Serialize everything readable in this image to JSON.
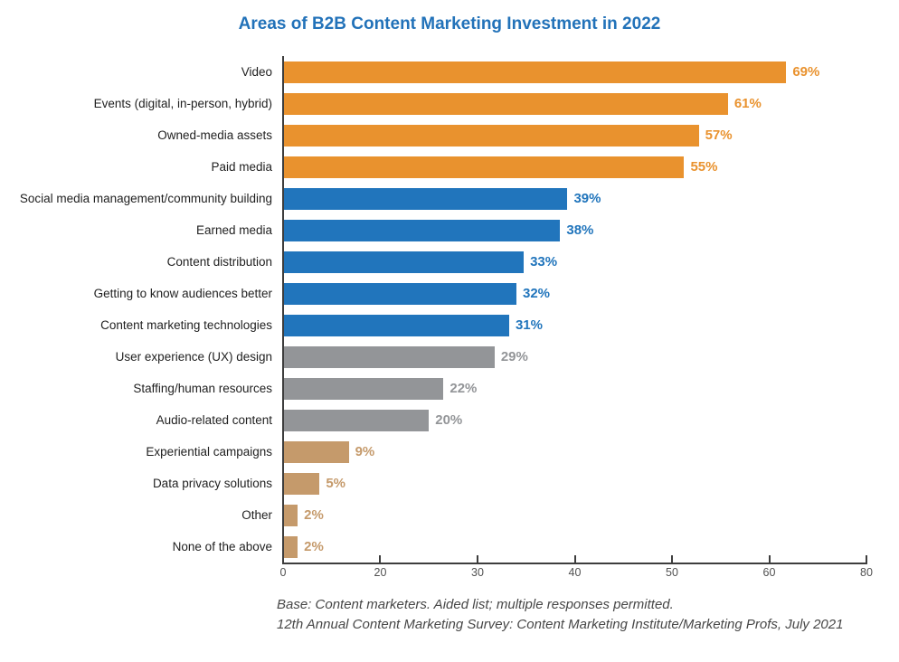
{
  "title": "Areas of B2B Content Marketing Investment in 2022",
  "footer": {
    "line1": "Base: Content marketers. Aided list; multiple responses permitted.",
    "line2": "12th Annual Content Marketing Survey: Content Marketing Institute/Marketing Profs, July 2021"
  },
  "colors": {
    "title_blue": "#2272b9",
    "orange": "#e9922e",
    "blue": "#2175bc",
    "gray": "#939598",
    "tan": "#c59a6b",
    "axis": "#3d3d3d",
    "tick_label": "#515151"
  },
  "chart_data": {
    "type": "bar",
    "orientation": "horizontal",
    "title": "Areas of B2B Content Marketing Investment in 2022",
    "xlabel": "",
    "ylabel": "",
    "xlim": [
      0,
      80
    ],
    "grid": false,
    "legend": null,
    "axis_tick_labels": [
      "0",
      "20",
      "30",
      "40",
      "50",
      "60",
      "80"
    ],
    "categories": [
      "Video",
      "Events (digital, in-person, hybrid)",
      "Owned-media assets",
      "Paid media",
      "Social media management/community building",
      "Earned media",
      "Content distribution",
      "Getting to know audiences better",
      "Content marketing technologies",
      "User experience (UX) design",
      "Staffing/human resources",
      "Audio-related content",
      "Experiential campaigns",
      "Data privacy solutions",
      "Other",
      "None of the above"
    ],
    "values": [
      69,
      61,
      57,
      55,
      39,
      38,
      33,
      32,
      31,
      29,
      22,
      20,
      9,
      5,
      2,
      2
    ],
    "value_labels": [
      "69%",
      "61%",
      "57%",
      "55%",
      "39%",
      "38%",
      "33%",
      "32%",
      "31%",
      "29%",
      "22%",
      "20%",
      "9%",
      "5%",
      "2%",
      "2%"
    ],
    "bar_colors": [
      "#e9922e",
      "#e9922e",
      "#e9922e",
      "#e9922e",
      "#2175bc",
      "#2175bc",
      "#2175bc",
      "#2175bc",
      "#2175bc",
      "#939598",
      "#939598",
      "#939598",
      "#c59a6b",
      "#c59a6b",
      "#c59a6b",
      "#c59a6b"
    ]
  }
}
